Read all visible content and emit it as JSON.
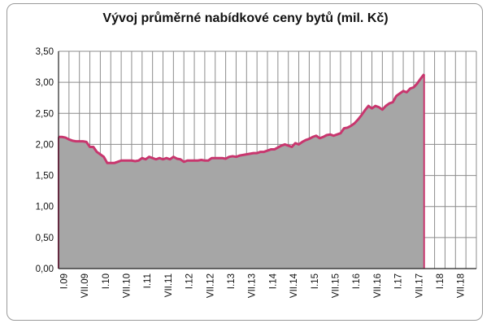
{
  "chart_data": {
    "type": "area",
    "title": "Vývoj průměrné nabídkové ceny bytů (mil. Kč)",
    "xlabel": "",
    "ylabel": "",
    "ylim": [
      0,
      3.5
    ],
    "yticks": [
      "0,00",
      "0,50",
      "1,00",
      "1,50",
      "2,00",
      "2,50",
      "3,00",
      "3,50"
    ],
    "xtick_labels": [
      "I.09",
      "VII.09",
      "I.10",
      "VII.10",
      "I.11",
      "VII.11",
      "I.12",
      "VII.12",
      "I.13",
      "VII.13",
      "I.14",
      "VII.14",
      "I.15",
      "VII.15",
      "I.16",
      "VII.16",
      "I.17",
      "VII.17",
      "I.18",
      "VII.18"
    ],
    "grid": true,
    "colors": {
      "fill": "#a6a6a6",
      "line": "#c8366e",
      "grid": "#8c8c8c"
    },
    "series": [
      {
        "values": [
          2.12,
          2.12,
          2.11,
          2.08,
          2.06,
          2.05,
          2.05,
          2.05,
          2.04,
          1.96,
          1.96,
          1.88,
          1.84,
          1.8,
          1.7,
          1.7,
          1.7,
          1.72,
          1.74,
          1.74,
          1.74,
          1.74,
          1.73,
          1.74,
          1.78,
          1.76,
          1.8,
          1.78,
          1.76,
          1.78,
          1.76,
          1.78,
          1.76,
          1.8,
          1.77,
          1.76,
          1.72,
          1.74,
          1.74,
          1.74,
          1.74,
          1.75,
          1.74,
          1.74,
          1.78,
          1.78,
          1.78,
          1.78,
          1.77,
          1.8,
          1.81,
          1.8,
          1.82,
          1.83,
          1.84,
          1.85,
          1.86,
          1.86,
          1.88,
          1.88,
          1.9,
          1.92,
          1.92,
          1.95,
          1.98,
          2.0,
          1.98,
          1.96,
          2.02,
          2.0,
          2.04,
          2.07,
          2.09,
          2.12,
          2.14,
          2.1,
          2.12,
          2.15,
          2.16,
          2.14,
          2.16,
          2.18,
          2.26,
          2.27,
          2.3,
          2.34,
          2.4,
          2.47,
          2.55,
          2.62,
          2.58,
          2.62,
          2.6,
          2.56,
          2.62,
          2.66,
          2.68,
          2.78,
          2.82,
          2.86,
          2.84,
          2.9,
          2.92,
          2.98,
          3.06,
          3.13
        ]
      }
    ]
  }
}
